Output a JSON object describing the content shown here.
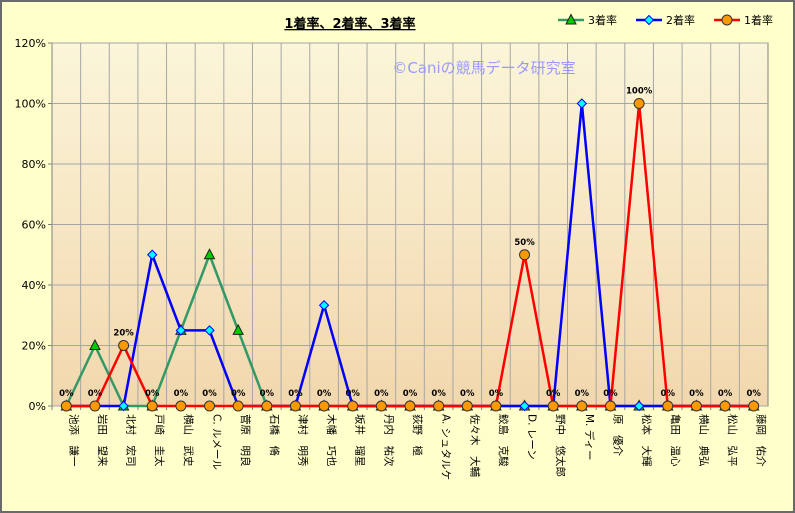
{
  "chart_data": {
    "type": "line",
    "title": "1着率、2着率、3着率",
    "watermark": "©Caniの競馬データ研究室",
    "categories": [
      "池添　謙一",
      "岩田　望来",
      "北村　宏司",
      "戸崎　圭太",
      "横山　武史",
      "C. ルメール",
      "菅原　明良",
      "石橋　脩",
      "津村　明秀",
      "木幡　巧也",
      "坂井　瑠星",
      "丹内　祐次",
      "荻野　極",
      "A. シュタルケ",
      "佐々木　大輔",
      "鮫島　克駿",
      "D. レーン",
      "野中　悠太郎",
      "M. ディー",
      "原　優介",
      "松本　大輝",
      "亀田　温心",
      "横山　典弘",
      "松山　弘平",
      "藤岡　佑介"
    ],
    "y_ticks": [
      "0%",
      "20%",
      "40%",
      "60%",
      "80%",
      "100%",
      "120%"
    ],
    "ylim": [
      0,
      120
    ],
    "series": [
      {
        "name": "3着率",
        "color": "#339966",
        "marker": "triangle",
        "marker_fill": "#00cc00",
        "values": [
          0,
          20,
          0,
          0,
          25,
          50,
          25,
          0,
          0,
          0,
          0,
          0,
          0,
          0,
          0,
          0,
          0,
          0,
          0,
          0,
          0,
          0,
          0,
          0,
          0
        ]
      },
      {
        "name": "2着率",
        "color": "#0000ff",
        "marker": "diamond",
        "marker_fill": "#00ffff",
        "values": [
          0,
          0,
          0,
          50,
          25,
          25,
          0,
          0,
          0,
          33.3,
          0,
          0,
          0,
          0,
          0,
          0,
          0,
          0,
          100,
          0,
          0,
          0,
          0,
          0,
          0
        ]
      },
      {
        "name": "1着率",
        "color": "#ff0000",
        "marker": "circle",
        "marker_fill": "#ff9900",
        "values": [
          0,
          0,
          20,
          0,
          0,
          0,
          0,
          0,
          0,
          0,
          0,
          0,
          0,
          0,
          0,
          0,
          50,
          0,
          0,
          0,
          100,
          0,
          0,
          0,
          0
        ]
      }
    ],
    "data_labels": [
      "0%",
      "0%",
      "20%",
      "0%",
      "0%",
      "0%",
      "0%",
      "0%",
      "0%",
      "0%",
      "0%",
      "0%",
      "0%",
      "0%",
      "0%",
      "0%",
      "50%",
      "0%",
      "0%",
      "0%",
      "100%",
      "0%",
      "0%",
      "0%",
      "0%"
    ],
    "legend_position": "top-right",
    "grid": true
  }
}
